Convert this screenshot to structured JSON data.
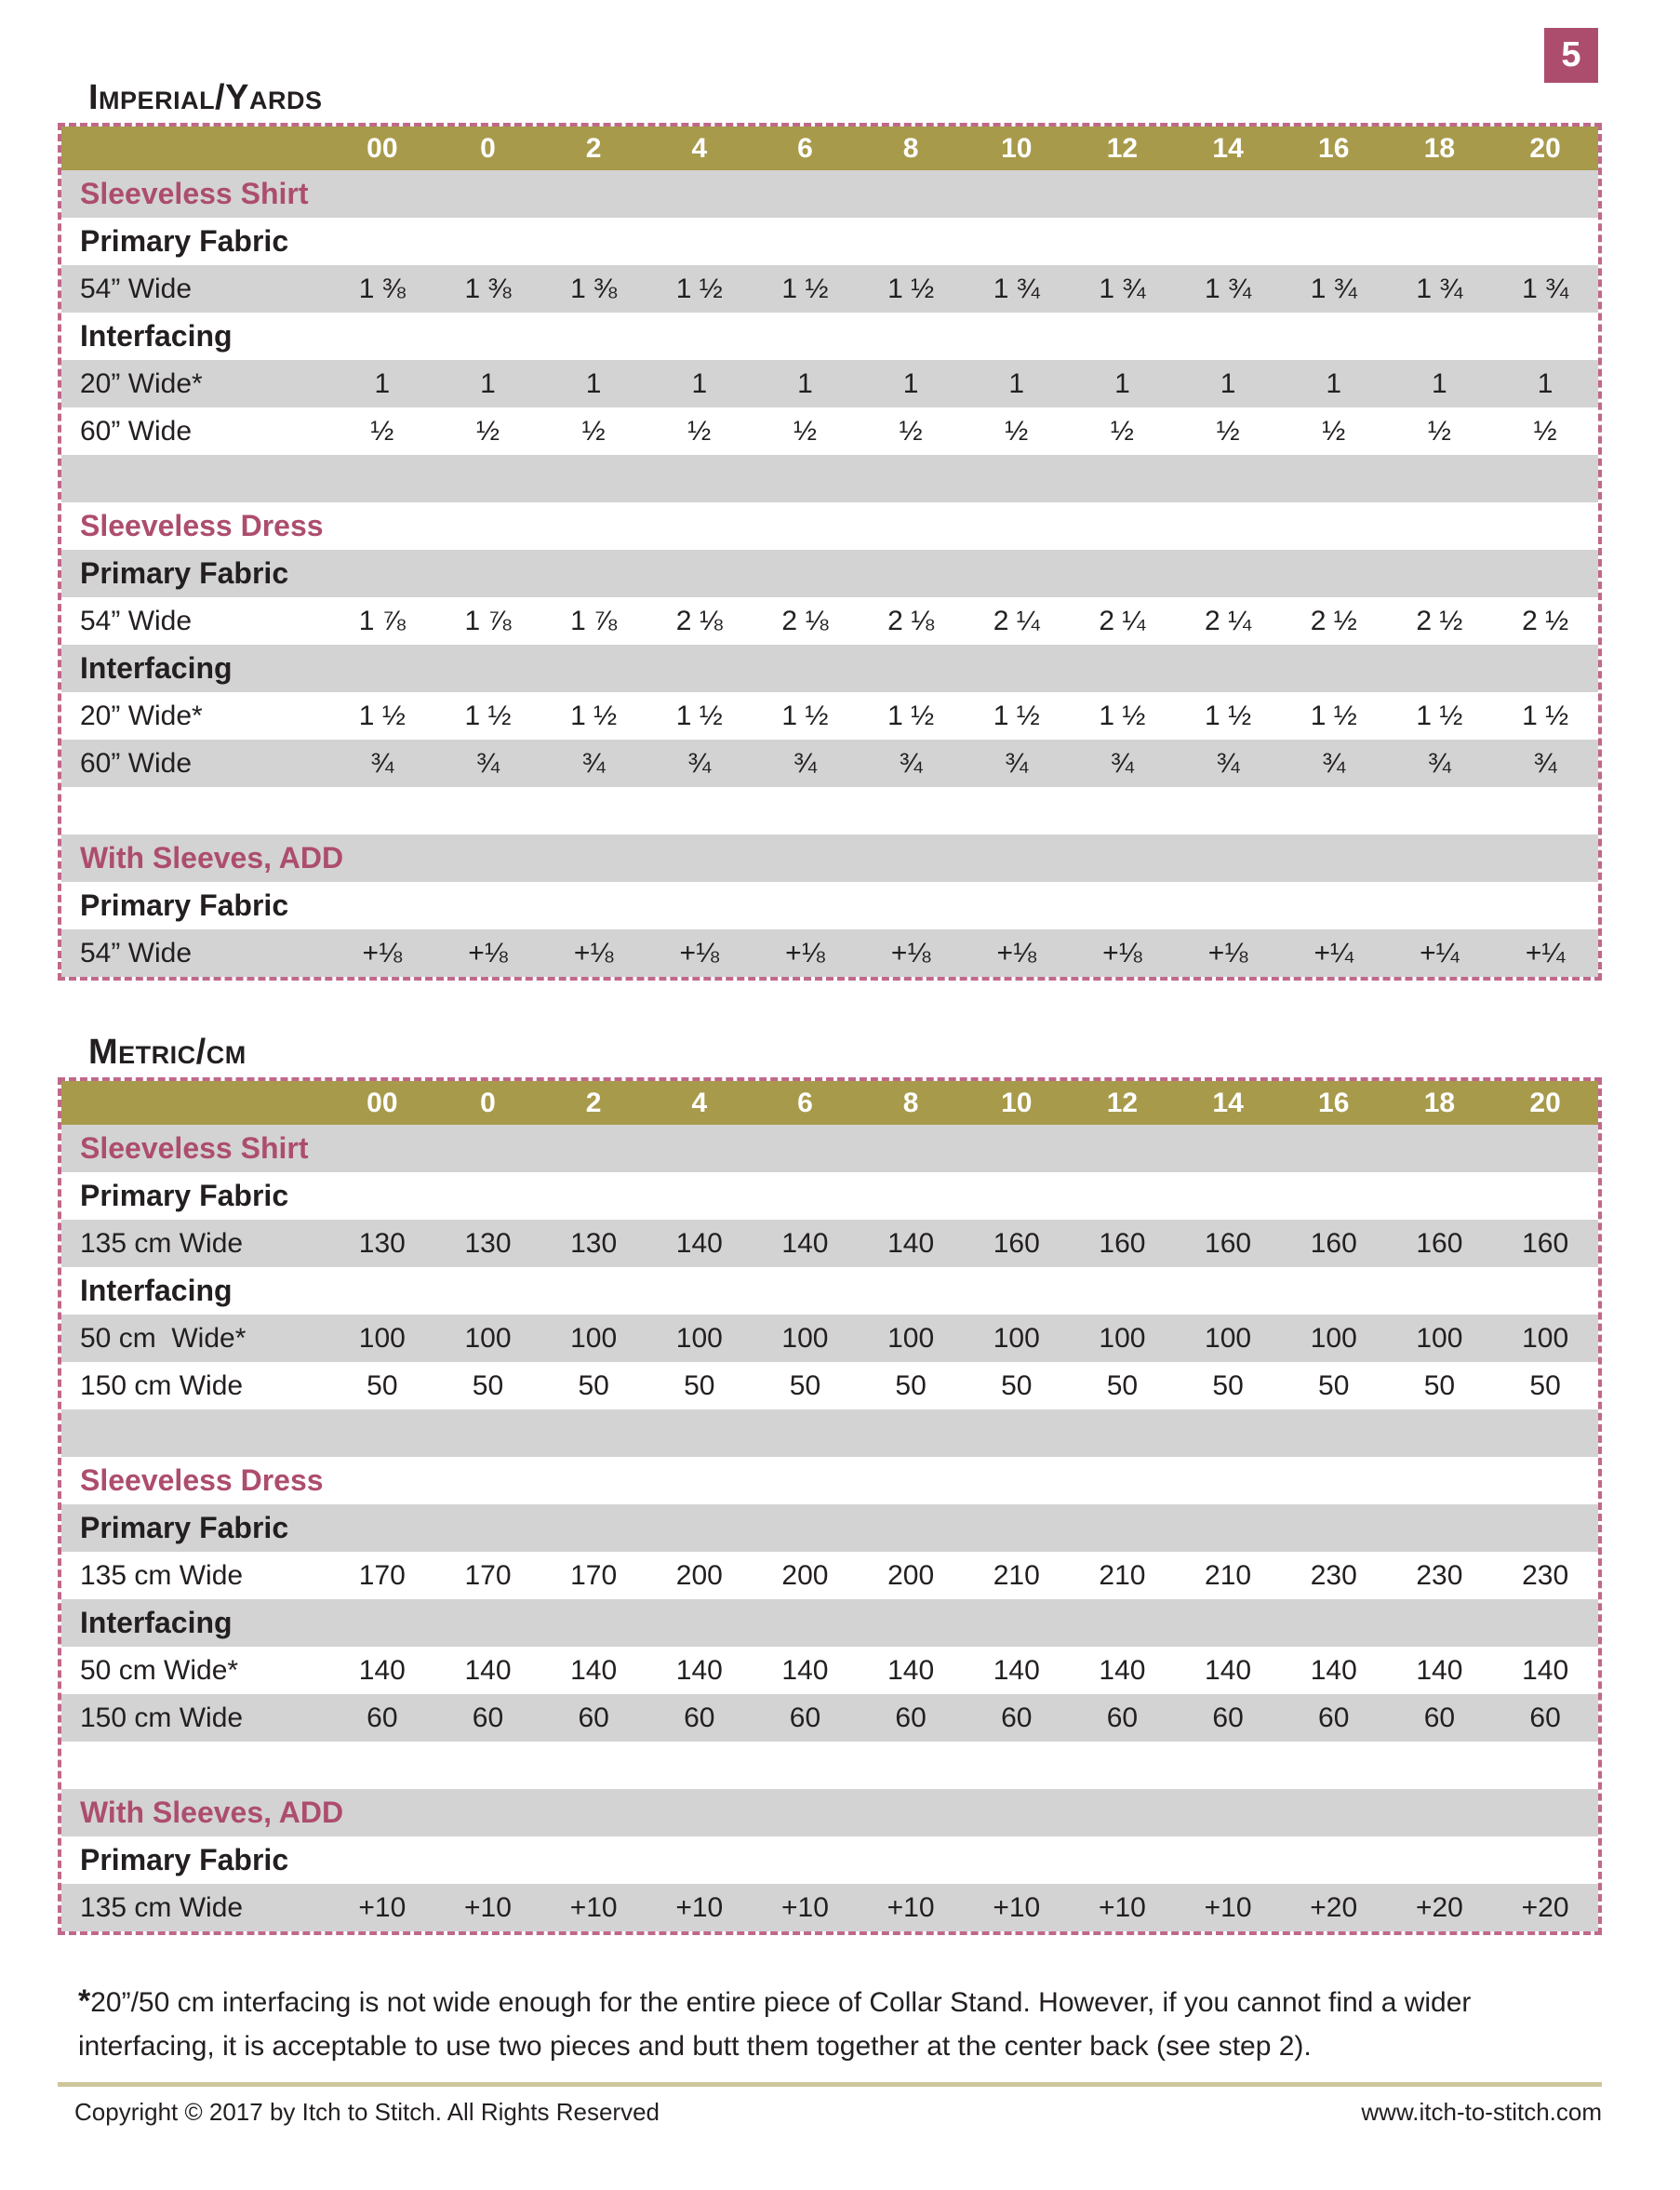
{
  "page": {
    "page_number": "5",
    "footnote_star": "*",
    "footnote_text": "20”/50 cm interfacing is not wide enough for the entire piece of Collar Stand. However, if you cannot find a wider interfacing, it is acceptable to use two pieces and butt them together at the center back (see step 2).",
    "footer_left": "Copyright © 2017 by Itch to Stitch. All Rights Reserved",
    "footer_right": "www.itch-to-stitch.com"
  },
  "colors": {
    "gold_header": "#a89a4b",
    "maroon_accent": "#ad4d6e",
    "row_gray": "#d3d3d4",
    "dashed_border": "#c0688a",
    "text": "#231f20",
    "footer_rule": "#cdc59c"
  },
  "tables": {
    "imperial": {
      "heading": "Imperial/Yards",
      "sizes": [
        "00",
        "0",
        "2",
        "4",
        "6",
        "8",
        "10",
        "12",
        "14",
        "16",
        "18",
        "20"
      ],
      "rows": [
        {
          "type": "section",
          "label": "Sleeveless Shirt"
        },
        {
          "type": "group",
          "label": "Primary Fabric"
        },
        {
          "type": "value",
          "label": "54” Wide",
          "values": [
            "1 ⅜",
            "1 ⅜",
            "1 ⅜",
            "1 ½",
            "1 ½",
            "1 ½",
            "1 ¾",
            "1 ¾",
            "1 ¾",
            "1 ¾",
            "1 ¾",
            "1 ¾"
          ]
        },
        {
          "type": "group",
          "label": "Interfacing"
        },
        {
          "type": "value",
          "label": "20” Wide*",
          "values": [
            "1",
            "1",
            "1",
            "1",
            "1",
            "1",
            "1",
            "1",
            "1",
            "1",
            "1",
            "1"
          ]
        },
        {
          "type": "value",
          "label": "60” Wide",
          "values": [
            "½",
            "½",
            "½",
            "½",
            "½",
            "½",
            "½",
            "½",
            "½",
            "½",
            "½",
            "½"
          ]
        },
        {
          "type": "spacer",
          "label": ""
        },
        {
          "type": "section",
          "label": "Sleeveless Dress"
        },
        {
          "type": "group",
          "label": "Primary Fabric"
        },
        {
          "type": "value",
          "label": "54” Wide",
          "values": [
            "1 ⅞",
            "1 ⅞",
            "1 ⅞",
            "2 ⅛",
            "2 ⅛",
            "2 ⅛",
            "2 ¼",
            "2 ¼",
            "2 ¼",
            "2 ½",
            "2 ½",
            "2 ½"
          ]
        },
        {
          "type": "group",
          "label": "Interfacing"
        },
        {
          "type": "value",
          "label": "20” Wide*",
          "values": [
            "1 ½",
            "1 ½",
            "1 ½",
            "1 ½",
            "1 ½",
            "1 ½",
            "1 ½",
            "1 ½",
            "1 ½",
            "1 ½",
            "1 ½",
            "1 ½"
          ]
        },
        {
          "type": "value",
          "label": "60” Wide",
          "values": [
            "¾",
            "¾",
            "¾",
            "¾",
            "¾",
            "¾",
            "¾",
            "¾",
            "¾",
            "¾",
            "¾",
            "¾"
          ]
        },
        {
          "type": "spacer",
          "label": ""
        },
        {
          "type": "section",
          "label": "With Sleeves, ADD"
        },
        {
          "type": "group",
          "label": "Primary Fabric"
        },
        {
          "type": "value",
          "label": "54” Wide",
          "values": [
            "+⅛",
            "+⅛",
            "+⅛",
            "+⅛",
            "+⅛",
            "+⅛",
            "+⅛",
            "+⅛",
            "+⅛",
            "+¼",
            "+¼",
            "+¼"
          ]
        }
      ]
    },
    "metric": {
      "heading": "Metric/cm",
      "sizes": [
        "00",
        "0",
        "2",
        "4",
        "6",
        "8",
        "10",
        "12",
        "14",
        "16",
        "18",
        "20"
      ],
      "rows": [
        {
          "type": "section",
          "label": "Sleeveless Shirt"
        },
        {
          "type": "group",
          "label": "Primary Fabric"
        },
        {
          "type": "value",
          "label": "135 cm Wide",
          "values": [
            "130",
            "130",
            "130",
            "140",
            "140",
            "140",
            "160",
            "160",
            "160",
            "160",
            "160",
            "160"
          ]
        },
        {
          "type": "group",
          "label": "Interfacing"
        },
        {
          "type": "value",
          "label": "50 cm  Wide*",
          "values": [
            "100",
            "100",
            "100",
            "100",
            "100",
            "100",
            "100",
            "100",
            "100",
            "100",
            "100",
            "100"
          ]
        },
        {
          "type": "value",
          "label": "150 cm Wide",
          "values": [
            "50",
            "50",
            "50",
            "50",
            "50",
            "50",
            "50",
            "50",
            "50",
            "50",
            "50",
            "50"
          ]
        },
        {
          "type": "spacer",
          "label": ""
        },
        {
          "type": "section",
          "label": "Sleeveless Dress"
        },
        {
          "type": "group",
          "label": "Primary Fabric"
        },
        {
          "type": "value",
          "label": "135 cm Wide",
          "values": [
            "170",
            "170",
            "170",
            "200",
            "200",
            "200",
            "210",
            "210",
            "210",
            "230",
            "230",
            "230"
          ]
        },
        {
          "type": "group",
          "label": "Interfacing"
        },
        {
          "type": "value",
          "label": "50 cm Wide*",
          "values": [
            "140",
            "140",
            "140",
            "140",
            "140",
            "140",
            "140",
            "140",
            "140",
            "140",
            "140",
            "140"
          ]
        },
        {
          "type": "value",
          "label": "150 cm Wide",
          "values": [
            "60",
            "60",
            "60",
            "60",
            "60",
            "60",
            "60",
            "60",
            "60",
            "60",
            "60",
            "60"
          ]
        },
        {
          "type": "spacer",
          "label": ""
        },
        {
          "type": "section",
          "label": "With Sleeves, ADD"
        },
        {
          "type": "group",
          "label": "Primary Fabric"
        },
        {
          "type": "value",
          "label": "135 cm Wide",
          "values": [
            "+10",
            "+10",
            "+10",
            "+10",
            "+10",
            "+10",
            "+10",
            "+10",
            "+10",
            "+20",
            "+20",
            "+20"
          ]
        }
      ]
    }
  }
}
